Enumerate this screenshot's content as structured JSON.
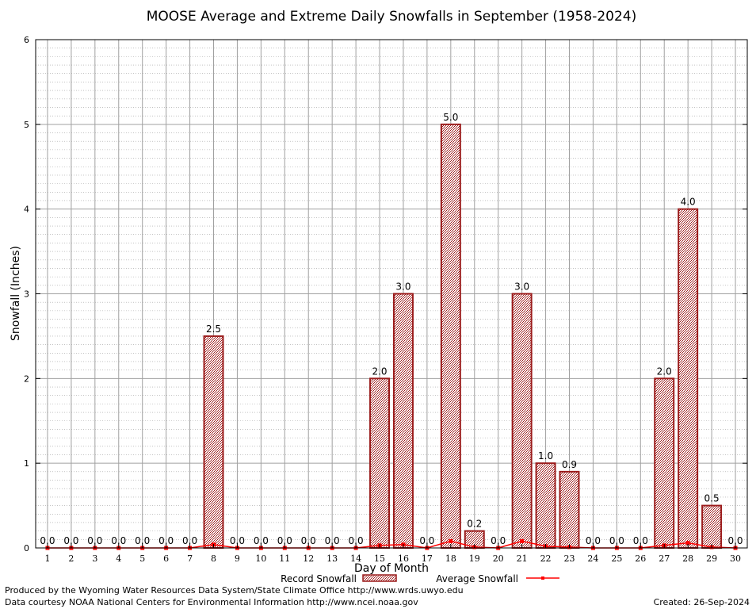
{
  "chart_data": {
    "type": "bar",
    "title": "MOOSE Average and Extreme Daily Snowfalls in September (1958-2024)",
    "xlabel": "Day of Month",
    "ylabel": "Snowfall (Inches)",
    "ylim": [
      0,
      6
    ],
    "yticks": [
      "0",
      "1",
      "2",
      "3",
      "4",
      "5",
      "6"
    ],
    "categories": [
      "1",
      "2",
      "3",
      "4",
      "5",
      "6",
      "7",
      "8",
      "9",
      "10",
      "11",
      "12",
      "13",
      "14",
      "15",
      "16",
      "17",
      "18",
      "19",
      "20",
      "21",
      "22",
      "23",
      "24",
      "25",
      "26",
      "27",
      "28",
      "29",
      "30"
    ],
    "series": [
      {
        "name": "Record Snowfall",
        "type": "bar",
        "values": [
          0.0,
          0.0,
          0.0,
          0.0,
          0.0,
          0.0,
          0.0,
          2.5,
          0.0,
          0.0,
          0.0,
          0.0,
          0.0,
          0.0,
          2.0,
          3.0,
          0.0,
          5.0,
          0.2,
          0.0,
          3.0,
          1.0,
          0.9,
          0.0,
          0.0,
          0.0,
          2.0,
          4.0,
          0.5,
          0.0
        ],
        "labels": [
          "0.0",
          "0.0",
          "0.0",
          "0.0",
          "0.0",
          "0.0",
          "0.0",
          "2.5",
          "0.0",
          "0.0",
          "0.0",
          "0.0",
          "0.0",
          "0.0",
          "2.0",
          "3.0",
          "0.0",
          "5.0",
          "0.2",
          "0.0",
          "3.0",
          "1.0",
          "0.9",
          "0.0",
          "0.0",
          "0.0",
          "2.0",
          "4.0",
          "0.5",
          "0.0"
        ],
        "color": "#9b1b1b"
      },
      {
        "name": "Average Snowfall",
        "type": "line",
        "values": [
          0,
          0,
          0,
          0,
          0,
          0,
          0,
          0.04,
          0,
          0,
          0,
          0,
          0,
          0,
          0.03,
          0.04,
          0,
          0.08,
          0.01,
          0,
          0.08,
          0.02,
          0.01,
          0,
          0,
          0,
          0.03,
          0.06,
          0.01,
          0
        ],
        "color": "#ff0000"
      }
    ],
    "grid": true,
    "legend": "bottom-center"
  },
  "footer": {
    "credit_1": "Produced by the Wyoming Water Resources Data System/State Climate Office http://www.wrds.uwyo.edu",
    "credit_2": "Data courtesy NOAA National Centers for Environmental Information http://www.ncei.noaa.gov",
    "created": "Created: 26-Sep-2024"
  }
}
